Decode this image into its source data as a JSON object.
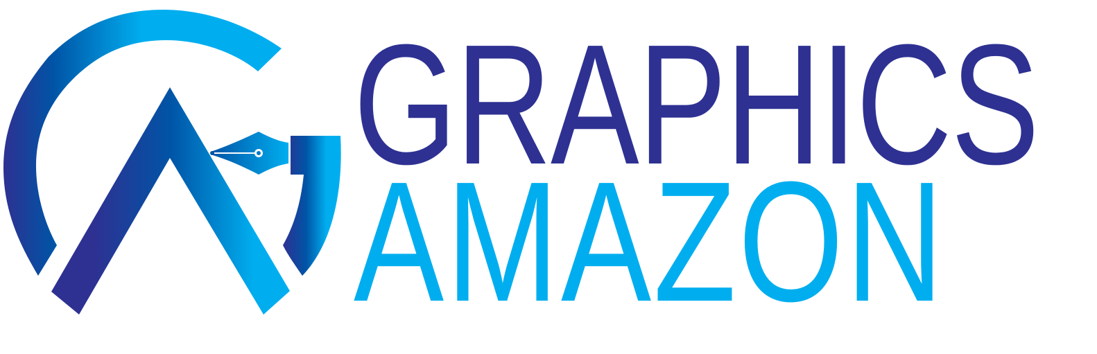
{
  "brand": {
    "line1": "GRAPHICS",
    "line2": "AMAZON"
  },
  "colors": {
    "navy": "#2e3192",
    "royal_blue": "#0054a6",
    "sky_blue": "#00aeef"
  },
  "icons": {
    "logo": "ga-monogram-logo",
    "pen": "fountain-pen-nib-icon"
  }
}
